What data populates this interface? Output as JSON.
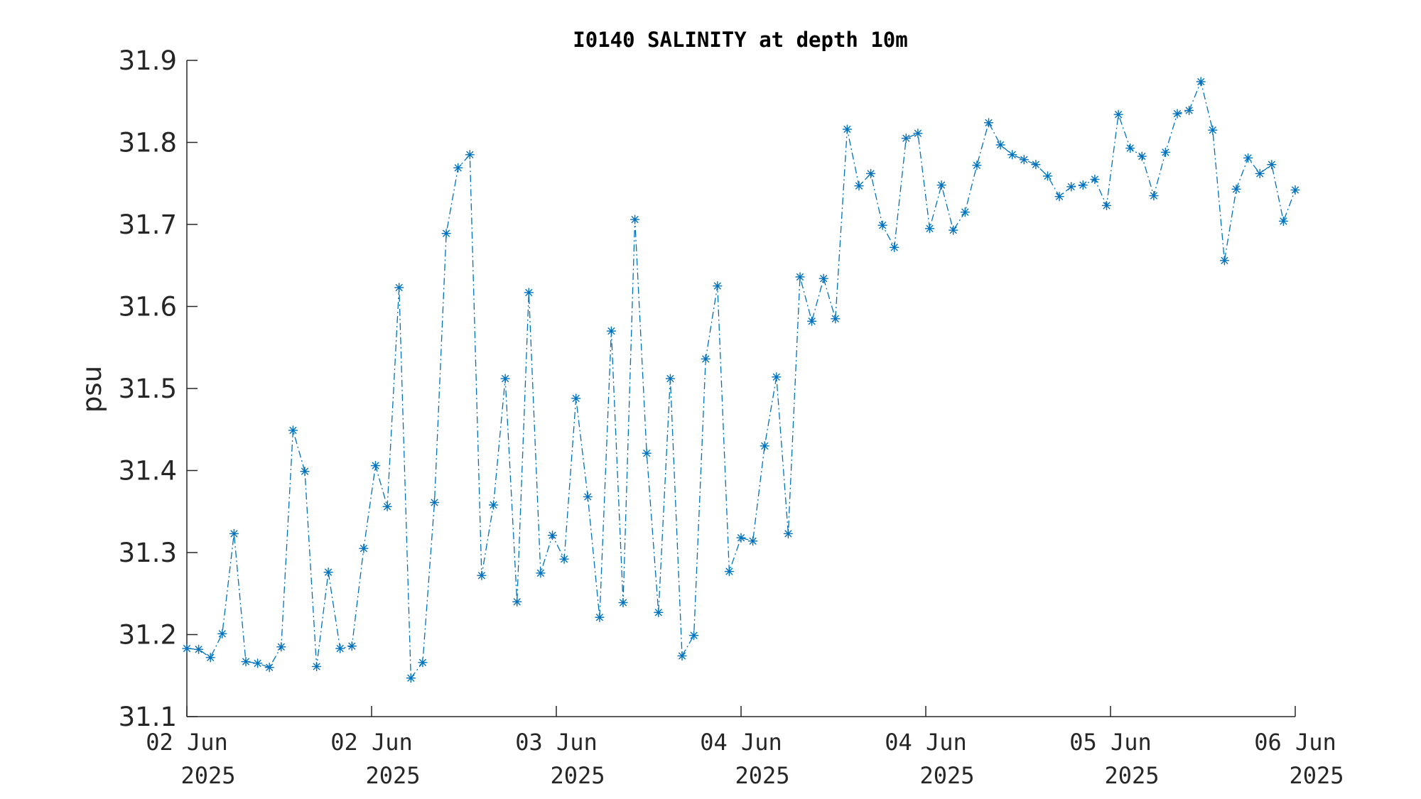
{
  "chart_data": {
    "type": "line",
    "title": "I0140 SALINITY at depth 10m",
    "xlabel": "",
    "ylabel": "psu",
    "ylim": [
      31.1,
      31.9
    ],
    "yticks": [
      31.1,
      31.2,
      31.3,
      31.4,
      31.5,
      31.6,
      31.7,
      31.8,
      31.9
    ],
    "xlim": [
      0,
      6
    ],
    "xticks": [
      {
        "x": 0,
        "line1": "02 Jun",
        "line2": "2025"
      },
      {
        "x": 1,
        "line1": "02 Jun",
        "line2": "2025"
      },
      {
        "x": 2,
        "line1": "03 Jun",
        "line2": "2025"
      },
      {
        "x": 3,
        "line1": "04 Jun",
        "line2": "2025"
      },
      {
        "x": 4,
        "line1": "04 Jun",
        "line2": "2025"
      },
      {
        "x": 5,
        "line1": "05 Jun",
        "line2": "2025"
      },
      {
        "x": 6,
        "line1": "06 Jun",
        "line2": "2025"
      }
    ],
    "color": "#0072BD",
    "marker": "asterisk",
    "line_style": "dash-dot",
    "grid": false,
    "series": [
      {
        "values": [
          31.183,
          31.182,
          31.172,
          31.201,
          31.323,
          31.167,
          31.165,
          31.16,
          31.185,
          31.449,
          31.399,
          31.161,
          31.276,
          31.183,
          31.186,
          31.305,
          31.406,
          31.356,
          31.623,
          31.147,
          31.166,
          31.361,
          31.689,
          31.769,
          31.785,
          31.272,
          31.358,
          31.512,
          31.24,
          31.617,
          31.275,
          31.321,
          31.292,
          31.488,
          31.368,
          31.221,
          31.57,
          31.239,
          31.706,
          31.421,
          31.227,
          31.512,
          31.174,
          31.199,
          31.536,
          31.625,
          31.277,
          31.318,
          31.314,
          31.43,
          31.514,
          31.323,
          31.636,
          31.582,
          31.634,
          31.585,
          31.816,
          31.747,
          31.762,
          31.699,
          31.672,
          31.805,
          31.811,
          31.695,
          31.748,
          31.693,
          31.715,
          31.772,
          31.824,
          31.797,
          31.785,
          31.779,
          31.773,
          31.759,
          31.734,
          31.746,
          31.748,
          31.755,
          31.723,
          31.834,
          31.793,
          31.783,
          31.735,
          31.788,
          31.835,
          31.839,
          31.874,
          31.815,
          31.656,
          31.743,
          31.781,
          31.762,
          31.773,
          31.704,
          31.742
        ]
      }
    ]
  }
}
